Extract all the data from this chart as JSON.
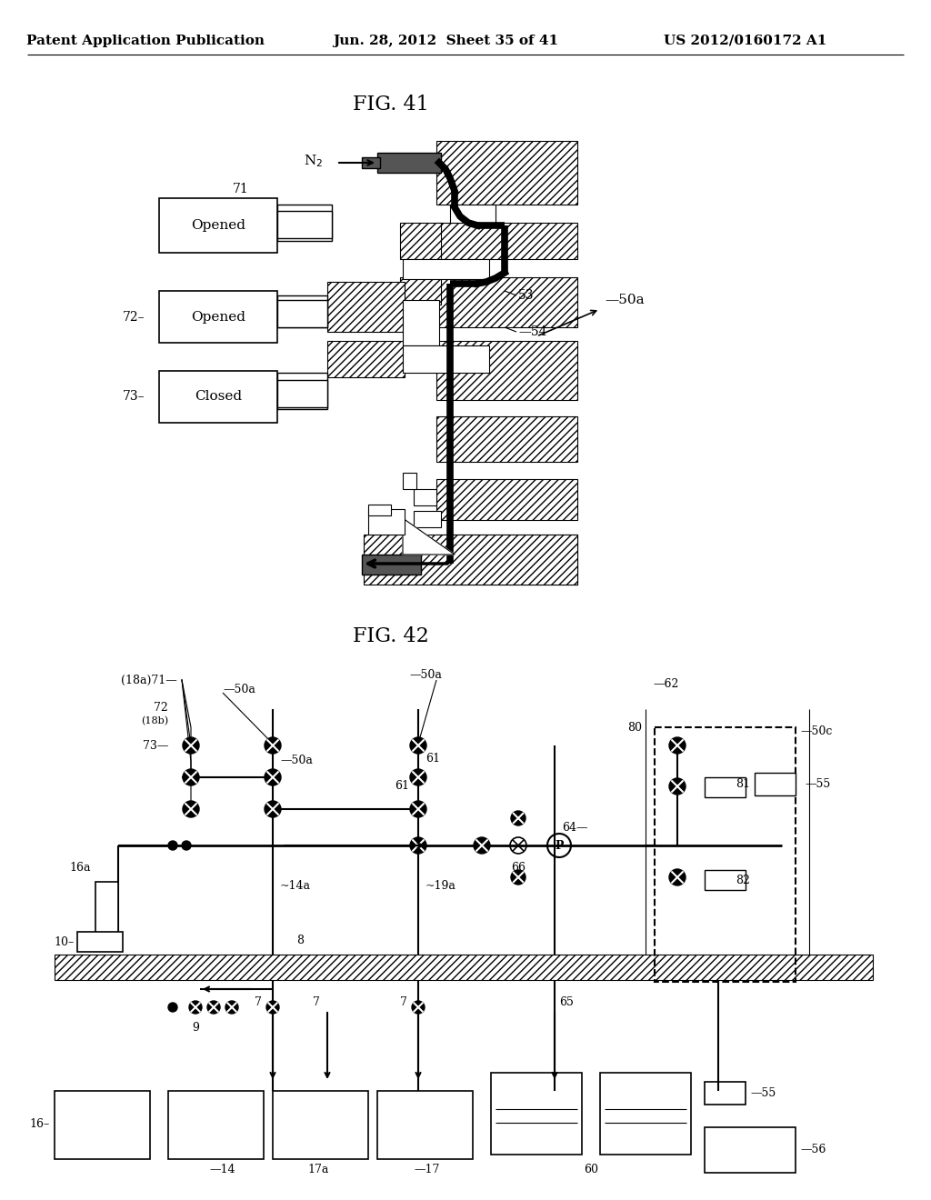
{
  "title_header_left": "Patent Application Publication",
  "title_header_center": "Jun. 28, 2012  Sheet 35 of 41",
  "title_header_right": "US 2012/0160172 A1",
  "fig41_title": "FIG. 41",
  "fig42_title": "FIG. 42",
  "bg_color": "#ffffff"
}
